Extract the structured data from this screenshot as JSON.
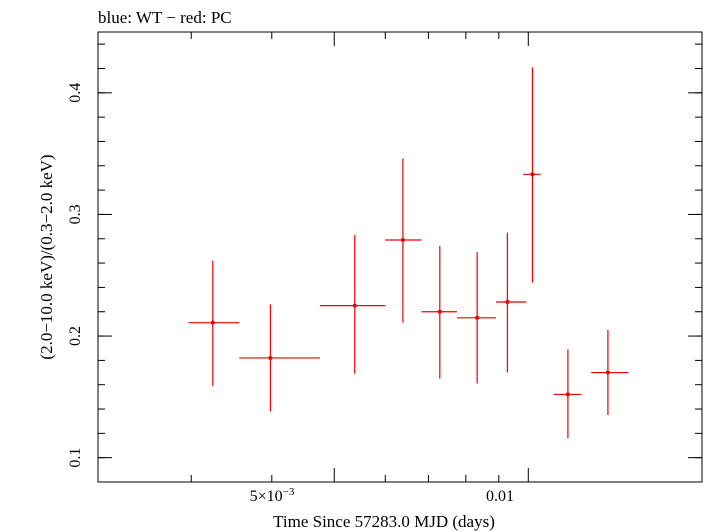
{
  "chart_data": {
    "type": "scatter",
    "title": "blue: WT − red: PC",
    "xlabel": "Time Since 57283.0 MJD (days)",
    "ylabel": "(2.0−10.0 keV)/(0.3−2.0 keV)",
    "xscale": "log",
    "xlim": [
      0.00215,
      0.0186
    ],
    "ylim": [
      0.08,
      0.45
    ],
    "x_major_ticks": [
      0.005,
      0.01
    ],
    "x_tick_labels": {
      "base": "5×10",
      "exp": "−3",
      "second": "0.01"
    },
    "x_minor_ticks": [
      0.003,
      0.004,
      0.006,
      0.007,
      0.008,
      0.009
    ],
    "y_ticks": [
      0.1,
      0.2,
      0.3,
      0.4
    ],
    "y_tick_labels": [
      "0.1",
      "0.2",
      "0.3",
      "0.4"
    ],
    "y_minor_step": 0.02,
    "grid": false,
    "series": [
      {
        "name": "PC",
        "color": "#ee0000",
        "points": [
          {
            "x": 0.00324,
            "xlo": 0.00297,
            "xhi": 0.00356,
            "y": 0.211,
            "ylo": 0.159,
            "yhi": 0.262
          },
          {
            "x": 0.00398,
            "xlo": 0.00356,
            "xhi": 0.00475,
            "y": 0.182,
            "ylo": 0.138,
            "yhi": 0.226
          },
          {
            "x": 0.00538,
            "xlo": 0.00475,
            "xhi": 0.006,
            "y": 0.225,
            "ylo": 0.169,
            "yhi": 0.283
          },
          {
            "x": 0.00639,
            "xlo": 0.006,
            "xhi": 0.00683,
            "y": 0.279,
            "ylo": 0.211,
            "yhi": 0.346
          },
          {
            "x": 0.00729,
            "xlo": 0.00683,
            "xhi": 0.00775,
            "y": 0.22,
            "ylo": 0.165,
            "yhi": 0.274
          },
          {
            "x": 0.00833,
            "xlo": 0.00775,
            "xhi": 0.00891,
            "y": 0.215,
            "ylo": 0.161,
            "yhi": 0.269
          },
          {
            "x": 0.00928,
            "xlo": 0.00891,
            "xhi": 0.00993,
            "y": 0.228,
            "ylo": 0.17,
            "yhi": 0.285
          },
          {
            "x": 0.01015,
            "xlo": 0.00982,
            "xhi": 0.01045,
            "y": 0.333,
            "ylo": 0.244,
            "yhi": 0.421
          },
          {
            "x": 0.01152,
            "xlo": 0.01095,
            "xhi": 0.01208,
            "y": 0.152,
            "ylo": 0.116,
            "yhi": 0.189
          },
          {
            "x": 0.01329,
            "xlo": 0.01252,
            "xhi": 0.0143,
            "y": 0.17,
            "ylo": 0.135,
            "yhi": 0.205
          }
        ]
      }
    ]
  }
}
